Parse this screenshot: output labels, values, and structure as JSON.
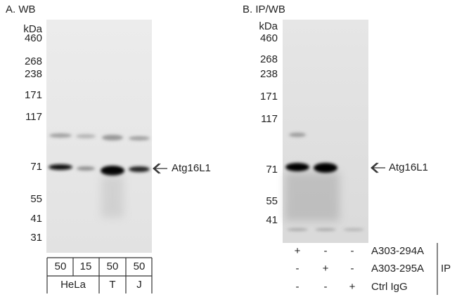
{
  "panel_a": {
    "title": "A. WB",
    "unit": "kDa",
    "markers": [
      460,
      268,
      238,
      171,
      117,
      71,
      55,
      41,
      31
    ],
    "band_label": "Atg16L1",
    "loading": [
      50,
      15,
      50,
      50
    ],
    "cell_lines": [
      "HeLa",
      "T",
      "J"
    ]
  },
  "panel_b": {
    "title": "B. IP/WB",
    "unit": "kDa",
    "markers": [
      460,
      268,
      238,
      171,
      117,
      71,
      55,
      41
    ],
    "band_label": "Atg16L1",
    "ip_rows": [
      {
        "label": "A303-294A",
        "lanes": [
          "+",
          "-",
          "-"
        ]
      },
      {
        "label": "A303-295A",
        "lanes": [
          "-",
          "+",
          "-"
        ]
      },
      {
        "label": "Ctrl IgG",
        "lanes": [
          "-",
          "-",
          "+"
        ]
      }
    ],
    "ip_label": "IP"
  }
}
